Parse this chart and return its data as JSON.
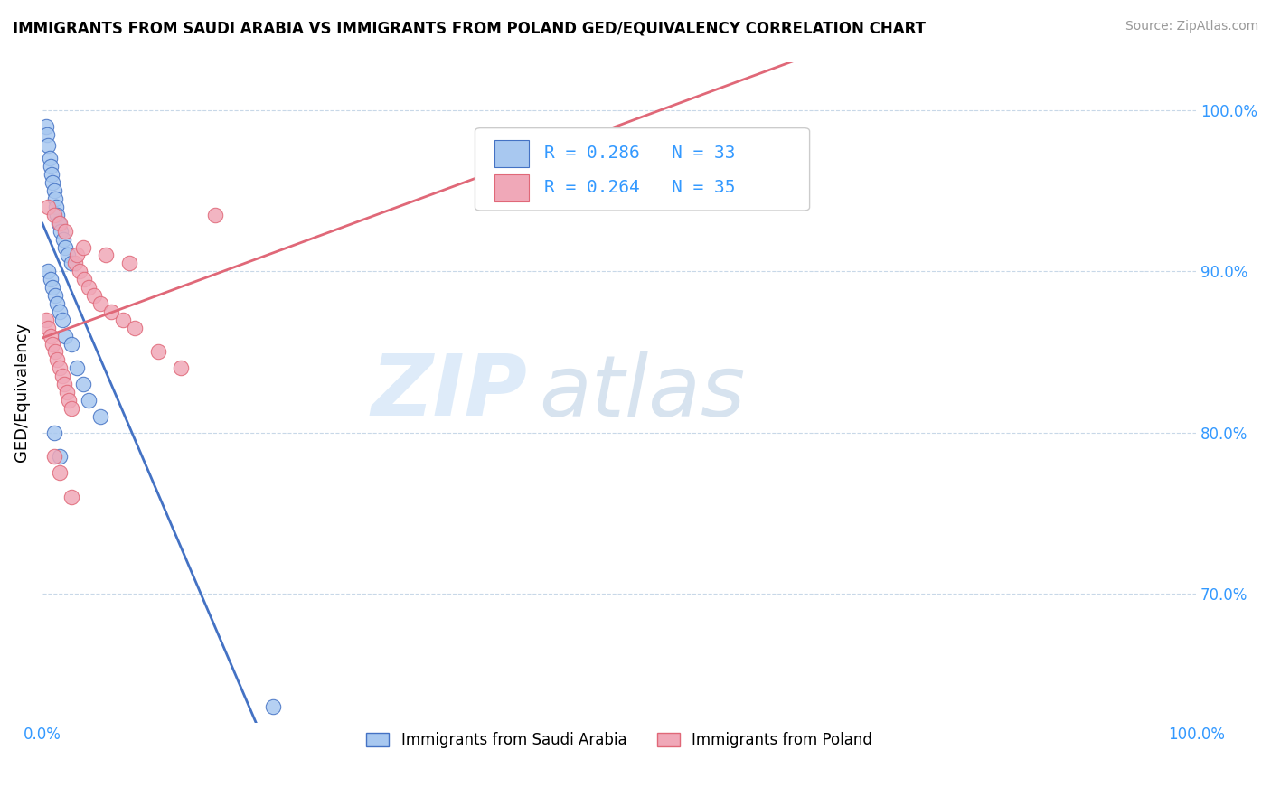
{
  "title": "IMMIGRANTS FROM SAUDI ARABIA VS IMMIGRANTS FROM POLAND GED/EQUIVALENCY CORRELATION CHART",
  "source": "Source: ZipAtlas.com",
  "ylabel": "GED/Equivalency",
  "ytick_labels": [
    "70.0%",
    "80.0%",
    "90.0%",
    "100.0%"
  ],
  "ytick_values": [
    70.0,
    80.0,
    90.0,
    100.0
  ],
  "legend_blue_label": "Immigrants from Saudi Arabia",
  "legend_pink_label": "Immigrants from Poland",
  "legend_r_blue": "R = 0.286",
  "legend_n_blue": "N = 33",
  "legend_r_pink": "R = 0.264",
  "legend_n_pink": "N = 35",
  "blue_color": "#a8c8f0",
  "pink_color": "#f0a8b8",
  "trend_blue_color": "#4472c4",
  "trend_pink_color": "#e06878",
  "watermark_zip": "ZIP",
  "watermark_atlas": "atlas",
  "blue_x": [
    0.3,
    0.4,
    0.5,
    0.6,
    0.7,
    0.8,
    0.9,
    1.0,
    1.1,
    1.2,
    1.3,
    1.4,
    1.6,
    1.8,
    2.0,
    2.2,
    2.5,
    0.5,
    0.7,
    0.9,
    1.1,
    1.3,
    1.5,
    1.7,
    2.0,
    2.5,
    3.0,
    3.5,
    4.0,
    5.0,
    1.0,
    1.5,
    20.0
  ],
  "blue_y": [
    99.0,
    98.5,
    97.8,
    97.0,
    96.5,
    96.0,
    95.5,
    95.0,
    94.5,
    94.0,
    93.5,
    93.0,
    92.5,
    92.0,
    91.5,
    91.0,
    90.5,
    90.0,
    89.5,
    89.0,
    88.5,
    88.0,
    87.5,
    87.0,
    86.0,
    85.5,
    84.0,
    83.0,
    82.0,
    81.0,
    80.0,
    78.5,
    63.0
  ],
  "pink_x": [
    0.3,
    0.5,
    0.7,
    0.9,
    1.1,
    1.3,
    1.5,
    1.7,
    1.9,
    2.1,
    2.3,
    2.5,
    2.8,
    3.2,
    3.6,
    4.0,
    4.5,
    5.0,
    6.0,
    7.0,
    8.0,
    10.0,
    12.0,
    3.0,
    0.5,
    1.0,
    1.5,
    2.0,
    3.5,
    5.5,
    7.5,
    1.0,
    1.5,
    2.5,
    15.0
  ],
  "pink_y": [
    87.0,
    86.5,
    86.0,
    85.5,
    85.0,
    84.5,
    84.0,
    83.5,
    83.0,
    82.5,
    82.0,
    81.5,
    90.5,
    90.0,
    89.5,
    89.0,
    88.5,
    88.0,
    87.5,
    87.0,
    86.5,
    85.0,
    84.0,
    91.0,
    94.0,
    93.5,
    93.0,
    92.5,
    91.5,
    91.0,
    90.5,
    78.5,
    77.5,
    76.0,
    93.5
  ],
  "xlim": [
    0.0,
    100.0
  ],
  "ylim": [
    62.0,
    103.0
  ],
  "trend_x_start": 0.0,
  "trend_x_end": 100.0
}
